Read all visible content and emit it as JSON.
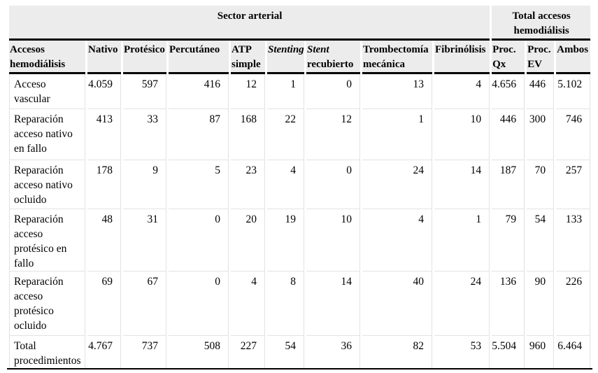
{
  "table": {
    "group_headers": [
      {
        "label": "Sector arterial",
        "colspan": 9
      },
      {
        "label": "Total accesos hemodiálisis",
        "colspan": 3
      }
    ],
    "columns": [
      {
        "label": "Accesos hemodiálisis"
      },
      {
        "label": "Nativo"
      },
      {
        "label": "Protésico"
      },
      {
        "label": "Percutáneo"
      },
      {
        "label": "ATP simple"
      },
      {
        "label": "Stenting",
        "italic": true
      },
      {
        "label": "Stent recubierto",
        "italic_prefix": "Stent"
      },
      {
        "label": "Trombectomía mecánica"
      },
      {
        "label": "Fibrinólisis"
      },
      {
        "label": "Proc. Qx"
      },
      {
        "label": "Proc. EV"
      },
      {
        "label": "Ambos"
      }
    ],
    "rows": [
      {
        "label": "Acceso vascular",
        "values": [
          "4.059",
          "597",
          "416",
          "12",
          "1",
          "0",
          "13",
          "4",
          "4.656",
          "446",
          "5.102"
        ]
      },
      {
        "label": "Reparación acceso nativo en fallo",
        "values": [
          "413",
          "33",
          "87",
          "168",
          "22",
          "12",
          "1",
          "10",
          "446",
          "300",
          "746"
        ]
      },
      {
        "label": "Reparación acceso nativo ocluido",
        "values": [
          "178",
          "9",
          "5",
          "23",
          "4",
          "0",
          "24",
          "14",
          "187",
          "70",
          "257"
        ]
      },
      {
        "label": "Reparación acceso protésico en fallo",
        "values": [
          "48",
          "31",
          "0",
          "20",
          "19",
          "10",
          "4",
          "1",
          "79",
          "54",
          "133"
        ]
      },
      {
        "label": "Reparación acceso protésico ocluido",
        "values": [
          "69",
          "67",
          "0",
          "4",
          "8",
          "14",
          "40",
          "24",
          "136",
          "90",
          "226"
        ]
      },
      {
        "label": "Total procedimientos",
        "values": [
          "4.767",
          "737",
          "508",
          "227",
          "54",
          "36",
          "82",
          "53",
          "5.504",
          "960",
          "6.464"
        ]
      }
    ],
    "colors": {
      "header_background": "#ececec",
      "rule": "#000000",
      "grid_line": "#e2e2e2"
    }
  }
}
